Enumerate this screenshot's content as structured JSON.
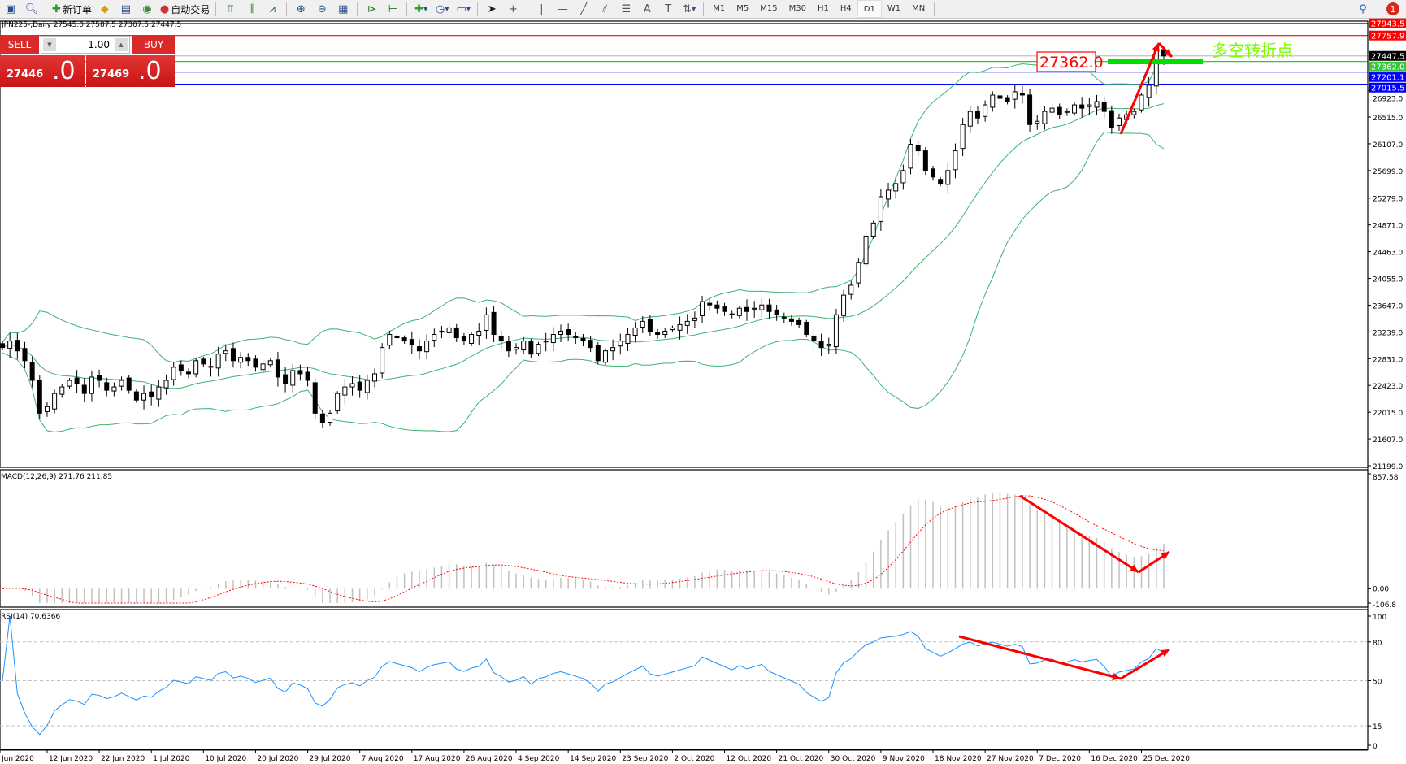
{
  "toolbar": {
    "new_order_label": "新订单",
    "auto_trading_label": "自动交易",
    "timeframes": [
      "M1",
      "M5",
      "M15",
      "M30",
      "H1",
      "H4",
      "D1",
      "W1",
      "MN"
    ],
    "active_timeframe": "D1",
    "notification_count": "1"
  },
  "chart": {
    "title": "JPN225-,Daily  27545.0 27587.5 27307.5 27447.5",
    "annotation_price_label": "27362.0",
    "annotation_text": "多空转折点",
    "colors": {
      "up": "#ffffff",
      "down": "#000000",
      "bands": "#3cb371",
      "macd_signal": "#ff0000",
      "macd_hist": "#c0c0c0",
      "rsi": "#1e90ff",
      "arrow": "#ff0000",
      "highlight": "#00e000"
    }
  },
  "trade_panel": {
    "sell_label": "SELL",
    "buy_label": "BUY",
    "lot_value": "1.00",
    "sell_price_main": "27446",
    "sell_price_big": ".0",
    "buy_price_main": "27469",
    "buy_price_big": ".0"
  },
  "price_axis": [
    "26923.0",
    "26515.0",
    "26107.0",
    "25699.0",
    "25279.0",
    "24871.0",
    "24463.0",
    "24055.0",
    "23647.0",
    "23239.0",
    "22831.0",
    "22423.0",
    "22015.0",
    "21607.0",
    "21199.0"
  ],
  "price_lines": [
    {
      "price": 27943.5,
      "label": "27943.5",
      "color": "#ff0000"
    },
    {
      "price": 27757.9,
      "label": "27757.9",
      "color": "#ff0000"
    },
    {
      "price": 27447.5,
      "label": "27447.5",
      "color": "#000000",
      "line": "#c0c0c0"
    },
    {
      "price": 27362.0,
      "label": "27362.0",
      "color": "#32c832"
    },
    {
      "price": 27201.1,
      "label": "27201.1",
      "color": "#0000ff"
    },
    {
      "price": 27015.5,
      "label": "27015.5",
      "color": "#0000ff"
    }
  ],
  "macd": {
    "label": "MACD(12,26,9) 271.76 211.85",
    "axis": [
      "857.58",
      "0.00",
      "-106.8"
    ],
    "max": 857.58,
    "min": -106.8
  },
  "rsi": {
    "label": "RSI(14) 70.6366",
    "axis": [
      "100",
      "80",
      "50",
      "15",
      "0"
    ],
    "levels": [
      80,
      50,
      15
    ]
  },
  "date_axis": [
    "Jun 2020",
    "12 Jun 2020",
    "22 Jun 2020",
    "1 Jul 2020",
    "10 Jul 2020",
    "20 Jul 2020",
    "29 Jul 2020",
    "7 Aug 2020",
    "17 Aug 2020",
    "26 Aug 2020",
    "4 Sep 2020",
    "14 Sep 2020",
    "23 Sep 2020",
    "2 Oct 2020",
    "12 Oct 2020",
    "21 Oct 2020",
    "30 Oct 2020",
    "9 Nov 2020",
    "18 Nov 2020",
    "27 Nov 2020",
    "7 Dec 2020",
    "16 Dec 2020",
    "25 Dec 2020"
  ],
  "chart_data": {
    "type": "candlestick",
    "price_range": [
      21199.0,
      28000.0
    ],
    "closes": [
      23000,
      23100,
      22950,
      22800,
      22500,
      22000,
      22100,
      22300,
      22400,
      22500,
      22450,
      22300,
      22550,
      22500,
      22350,
      22400,
      22500,
      22350,
      22200,
      22300,
      22250,
      22400,
      22500,
      22700,
      22650,
      22600,
      22800,
      22750,
      22700,
      22900,
      22950,
      22800,
      22850,
      22800,
      22700,
      22750,
      22800,
      22550,
      22450,
      22650,
      22600,
      22500,
      22000,
      21850,
      22000,
      22300,
      22400,
      22450,
      22350,
      22500,
      22600,
      23000,
      23200,
      23150,
      23100,
      23050,
      22950,
      23100,
      23200,
      23250,
      23300,
      23150,
      23100,
      23200,
      23250,
      23500,
      23200,
      23100,
      22950,
      23000,
      23100,
      22900,
      23050,
      23100,
      23200,
      23250,
      23200,
      23150,
      23100,
      23000,
      22800,
      22950,
      23000,
      23100,
      23200,
      23300,
      23400,
      23250,
      23200,
      23250,
      23300,
      23350,
      23400,
      23450,
      23700,
      23650,
      23600,
      23550,
      23500,
      23600,
      23550,
      23600,
      23650,
      23550,
      23500,
      23450,
      23400,
      23350,
      23200,
      23100,
      23000,
      23050,
      23500,
      23800,
      23950,
      24300,
      24700,
      24900,
      25300,
      25400,
      25500,
      25700,
      26100,
      26000,
      25700,
      25600,
      25500,
      25700,
      26000,
      26400,
      26600,
      26500,
      26700,
      26850,
      26800,
      26750,
      26900,
      26850,
      26400,
      26450,
      26600,
      26650,
      26550,
      26600,
      26700,
      26650,
      26700,
      26750,
      26600,
      26350,
      26500,
      26550,
      26600,
      26850,
      27000,
      27550,
      27447
    ]
  }
}
